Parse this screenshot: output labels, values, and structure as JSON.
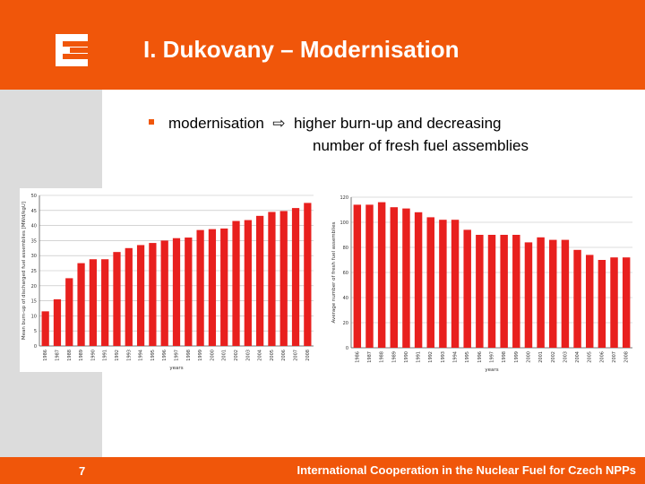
{
  "slide": {
    "title": "I. Dukovany – Modernisation",
    "bullet": {
      "lead": "modernisation",
      "arrow": "⇨",
      "line1": "higher burn-up and decreasing",
      "line2": "number of fresh fuel assemblies"
    },
    "page_number": "7",
    "footer": "International Cooperation in the Nuclear Fuel for Czech NPPs"
  },
  "colors": {
    "brand": "#f0560a",
    "bar": "#e8201e",
    "panel": "#dcdcdc"
  },
  "chart_data": [
    {
      "type": "bar",
      "categories": [
        "1986",
        "1987",
        "1988",
        "1989",
        "1990",
        "1991",
        "1992",
        "1993",
        "1994",
        "1995",
        "1996",
        "1997",
        "1998",
        "1999",
        "2000",
        "2001",
        "2002",
        "2003",
        "2004",
        "2005",
        "2006",
        "2007",
        "2008"
      ],
      "values": [
        11.5,
        15.5,
        22.5,
        27.5,
        28.8,
        28.8,
        31.2,
        32.5,
        33.5,
        34.2,
        35,
        35.8,
        36,
        38.5,
        38.8,
        39,
        41.5,
        41.8,
        43.2,
        44.5,
        44.8,
        45.8,
        47.5
      ],
      "xlabel": "years",
      "ylabel": "Mean burn-up of discharged fuel assemblies [MWd/kgU]",
      "ylim": [
        0,
        50
      ],
      "yticks": [
        "0",
        "5",
        "10",
        "15",
        "20",
        "25",
        "30",
        "35",
        "40",
        "45",
        "50"
      ],
      "grid": true
    },
    {
      "type": "bar",
      "categories": [
        "1986",
        "1987",
        "1988",
        "1989",
        "1990",
        "1991",
        "1992",
        "1993",
        "1994",
        "1995",
        "1996",
        "1997",
        "1998",
        "1999",
        "2000",
        "2001",
        "2002",
        "2003",
        "2004",
        "2005",
        "2006",
        "2007",
        "2008"
      ],
      "values": [
        114,
        114,
        116,
        112,
        111,
        108,
        104,
        102,
        102,
        94,
        90,
        90,
        90,
        90,
        84,
        88,
        86,
        86,
        78,
        74,
        70,
        72,
        72
      ],
      "xlabel": "years",
      "ylabel": "Average number of fresh fuel assemblies",
      "ylim": [
        0,
        120
      ],
      "yticks": [
        "0",
        "20",
        "40",
        "60",
        "80",
        "100",
        "120"
      ],
      "grid": true
    }
  ]
}
